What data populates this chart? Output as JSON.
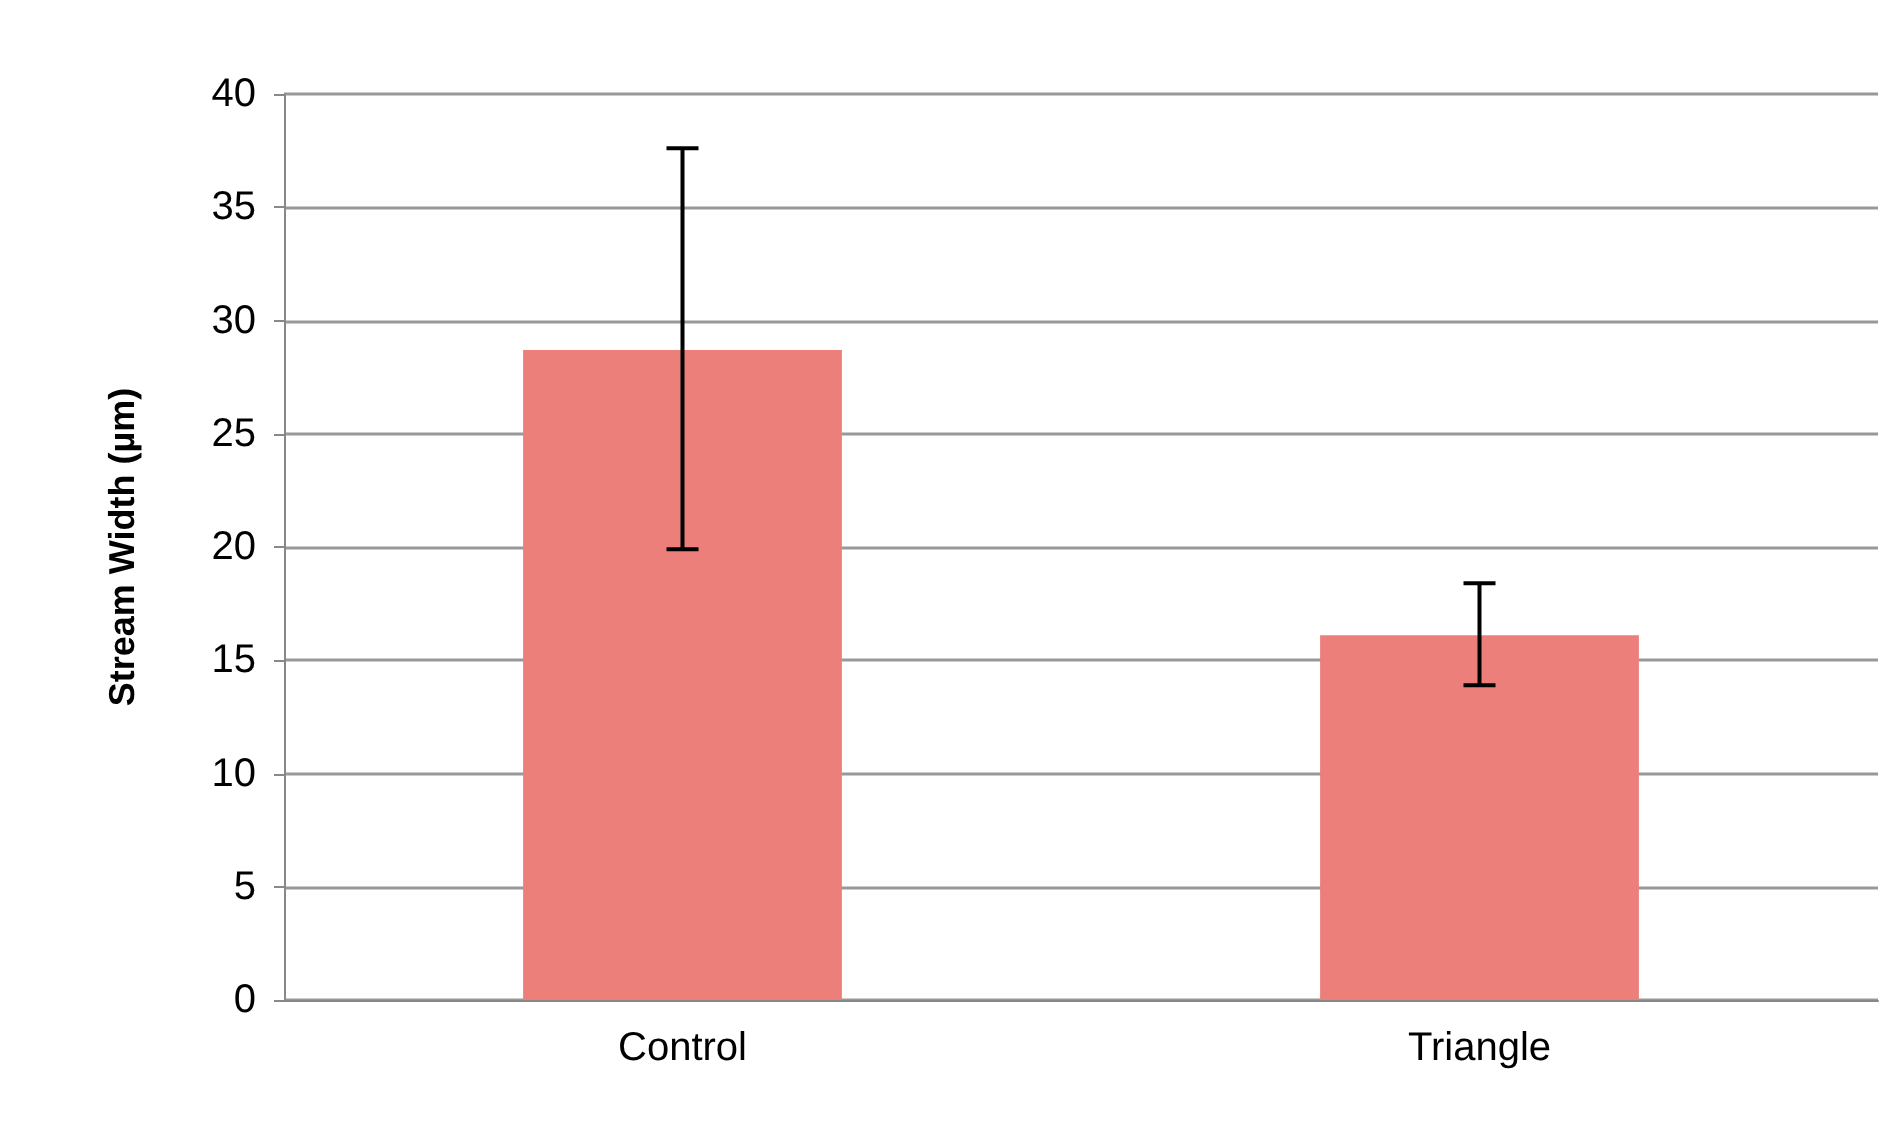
{
  "chart_data": {
    "type": "bar",
    "ylabel": "Stream Width (µm)",
    "categories": [
      "Control",
      "Triangle"
    ],
    "values": [
      28.7,
      16.1
    ],
    "color": "#ec7f79",
    "errors": [
      [
        19.9,
        37.6
      ],
      [
        13.9,
        18.4
      ]
    ],
    "ylim": [
      0,
      40
    ],
    "yticks": [
      0,
      5,
      10,
      15,
      20,
      25,
      30,
      35,
      40
    ],
    "grid": "y"
  }
}
